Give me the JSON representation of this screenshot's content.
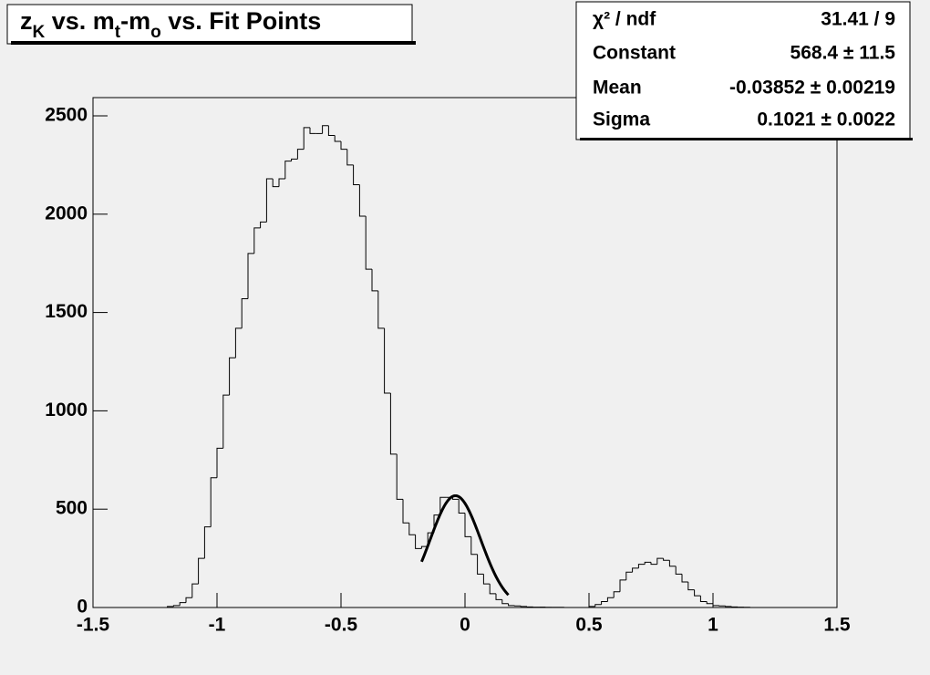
{
  "chart_data": {
    "type": "histogram",
    "title": [
      {
        "text": "z",
        "sub": false
      },
      {
        "text": "K",
        "sub": true
      },
      {
        "text": " vs. m",
        "sub": false
      },
      {
        "text": "t",
        "sub": true
      },
      {
        "text": "-m",
        "sub": false
      },
      {
        "text": "o",
        "sub": true
      },
      {
        "text": " vs. Fit Points",
        "sub": false
      }
    ],
    "bins": [
      -1.5,
      -1.475,
      -1.45,
      -1.425,
      -1.4,
      -1.375,
      -1.35,
      -1.325,
      -1.3,
      -1.275,
      -1.25,
      -1.225,
      -1.2,
      -1.175,
      -1.15,
      -1.125,
      -1.1,
      -1.075,
      -1.05,
      -1.025,
      -1,
      -0.975,
      -0.95,
      -0.925,
      -0.9,
      -0.875,
      -0.85,
      -0.825,
      -0.8,
      -0.775,
      -0.75,
      -0.725,
      -0.7,
      -0.675,
      -0.65,
      -0.625,
      -0.6,
      -0.575,
      -0.55,
      -0.525,
      -0.5,
      -0.475,
      -0.45,
      -0.425,
      -0.4,
      -0.375,
      -0.35,
      -0.325,
      -0.3,
      -0.275,
      -0.25,
      -0.225,
      -0.2,
      -0.175,
      -0.15,
      -0.125,
      -0.1,
      -0.075,
      -0.05,
      -0.025,
      0,
      0.025,
      0.05,
      0.075,
      0.1,
      0.125,
      0.15,
      0.175,
      0.2,
      0.225,
      0.25,
      0.275,
      0.3,
      0.325,
      0.35,
      0.375,
      0.4,
      0.425,
      0.45,
      0.475,
      0.5,
      0.525,
      0.55,
      0.575,
      0.6,
      0.625,
      0.65,
      0.675,
      0.7,
      0.725,
      0.75,
      0.775,
      0.8,
      0.825,
      0.85,
      0.875,
      0.9,
      0.925,
      0.95,
      0.975,
      1,
      1.025,
      1.05,
      1.075,
      1.1,
      1.125,
      1.15,
      1.175,
      1.2,
      1.225,
      1.25,
      1.275,
      1.3,
      1.325,
      1.35,
      1.375,
      1.4,
      1.425,
      1.45,
      1.475,
      1.5
    ],
    "values": [
      0,
      0,
      0,
      0,
      0,
      0,
      0,
      0,
      0,
      0,
      0,
      0,
      5,
      10,
      25,
      50,
      120,
      250,
      410,
      660,
      810,
      1080,
      1270,
      1420,
      1570,
      1800,
      1930,
      1960,
      2180,
      2140,
      2180,
      2270,
      2280,
      2330,
      2440,
      2410,
      2410,
      2450,
      2400,
      2370,
      2330,
      2250,
      2150,
      1990,
      1720,
      1610,
      1420,
      1090,
      780,
      550,
      430,
      370,
      300,
      310,
      380,
      470,
      560,
      560,
      550,
      480,
      360,
      270,
      170,
      120,
      70,
      40,
      20,
      10,
      8,
      5,
      3,
      2,
      2,
      1,
      1,
      1,
      0,
      0,
      0,
      0,
      5,
      15,
      30,
      50,
      80,
      140,
      180,
      200,
      220,
      230,
      220,
      250,
      240,
      210,
      170,
      130,
      90,
      60,
      30,
      20,
      10,
      8,
      5,
      3,
      2,
      1,
      0,
      0,
      0,
      0,
      0,
      0,
      0,
      0,
      0,
      0,
      0,
      0,
      0,
      0
    ],
    "color": "#000000",
    "fit": {
      "constant": 568.4,
      "mean": -0.03852,
      "sigma": 0.1021,
      "range": [
        -0.175,
        0.175
      ],
      "color": "#000000"
    },
    "stats": [
      {
        "label": "χ² / ndf",
        "value": "31.41 / 9"
      },
      {
        "label": "Constant",
        "value": "568.4 ± 11.5"
      },
      {
        "label": "Mean",
        "value": "-0.03852 ± 0.00219"
      },
      {
        "label": "Sigma",
        "value": "0.1021 ± 0.0022"
      }
    ],
    "xlim": [
      -1.5,
      1.5
    ],
    "xticks": [
      -1.5,
      -1,
      -0.5,
      0,
      0.5,
      1,
      1.5
    ],
    "ylim": [
      0,
      2500
    ],
    "yticks": [
      0,
      500,
      1000,
      1500,
      2000,
      2500
    ]
  }
}
